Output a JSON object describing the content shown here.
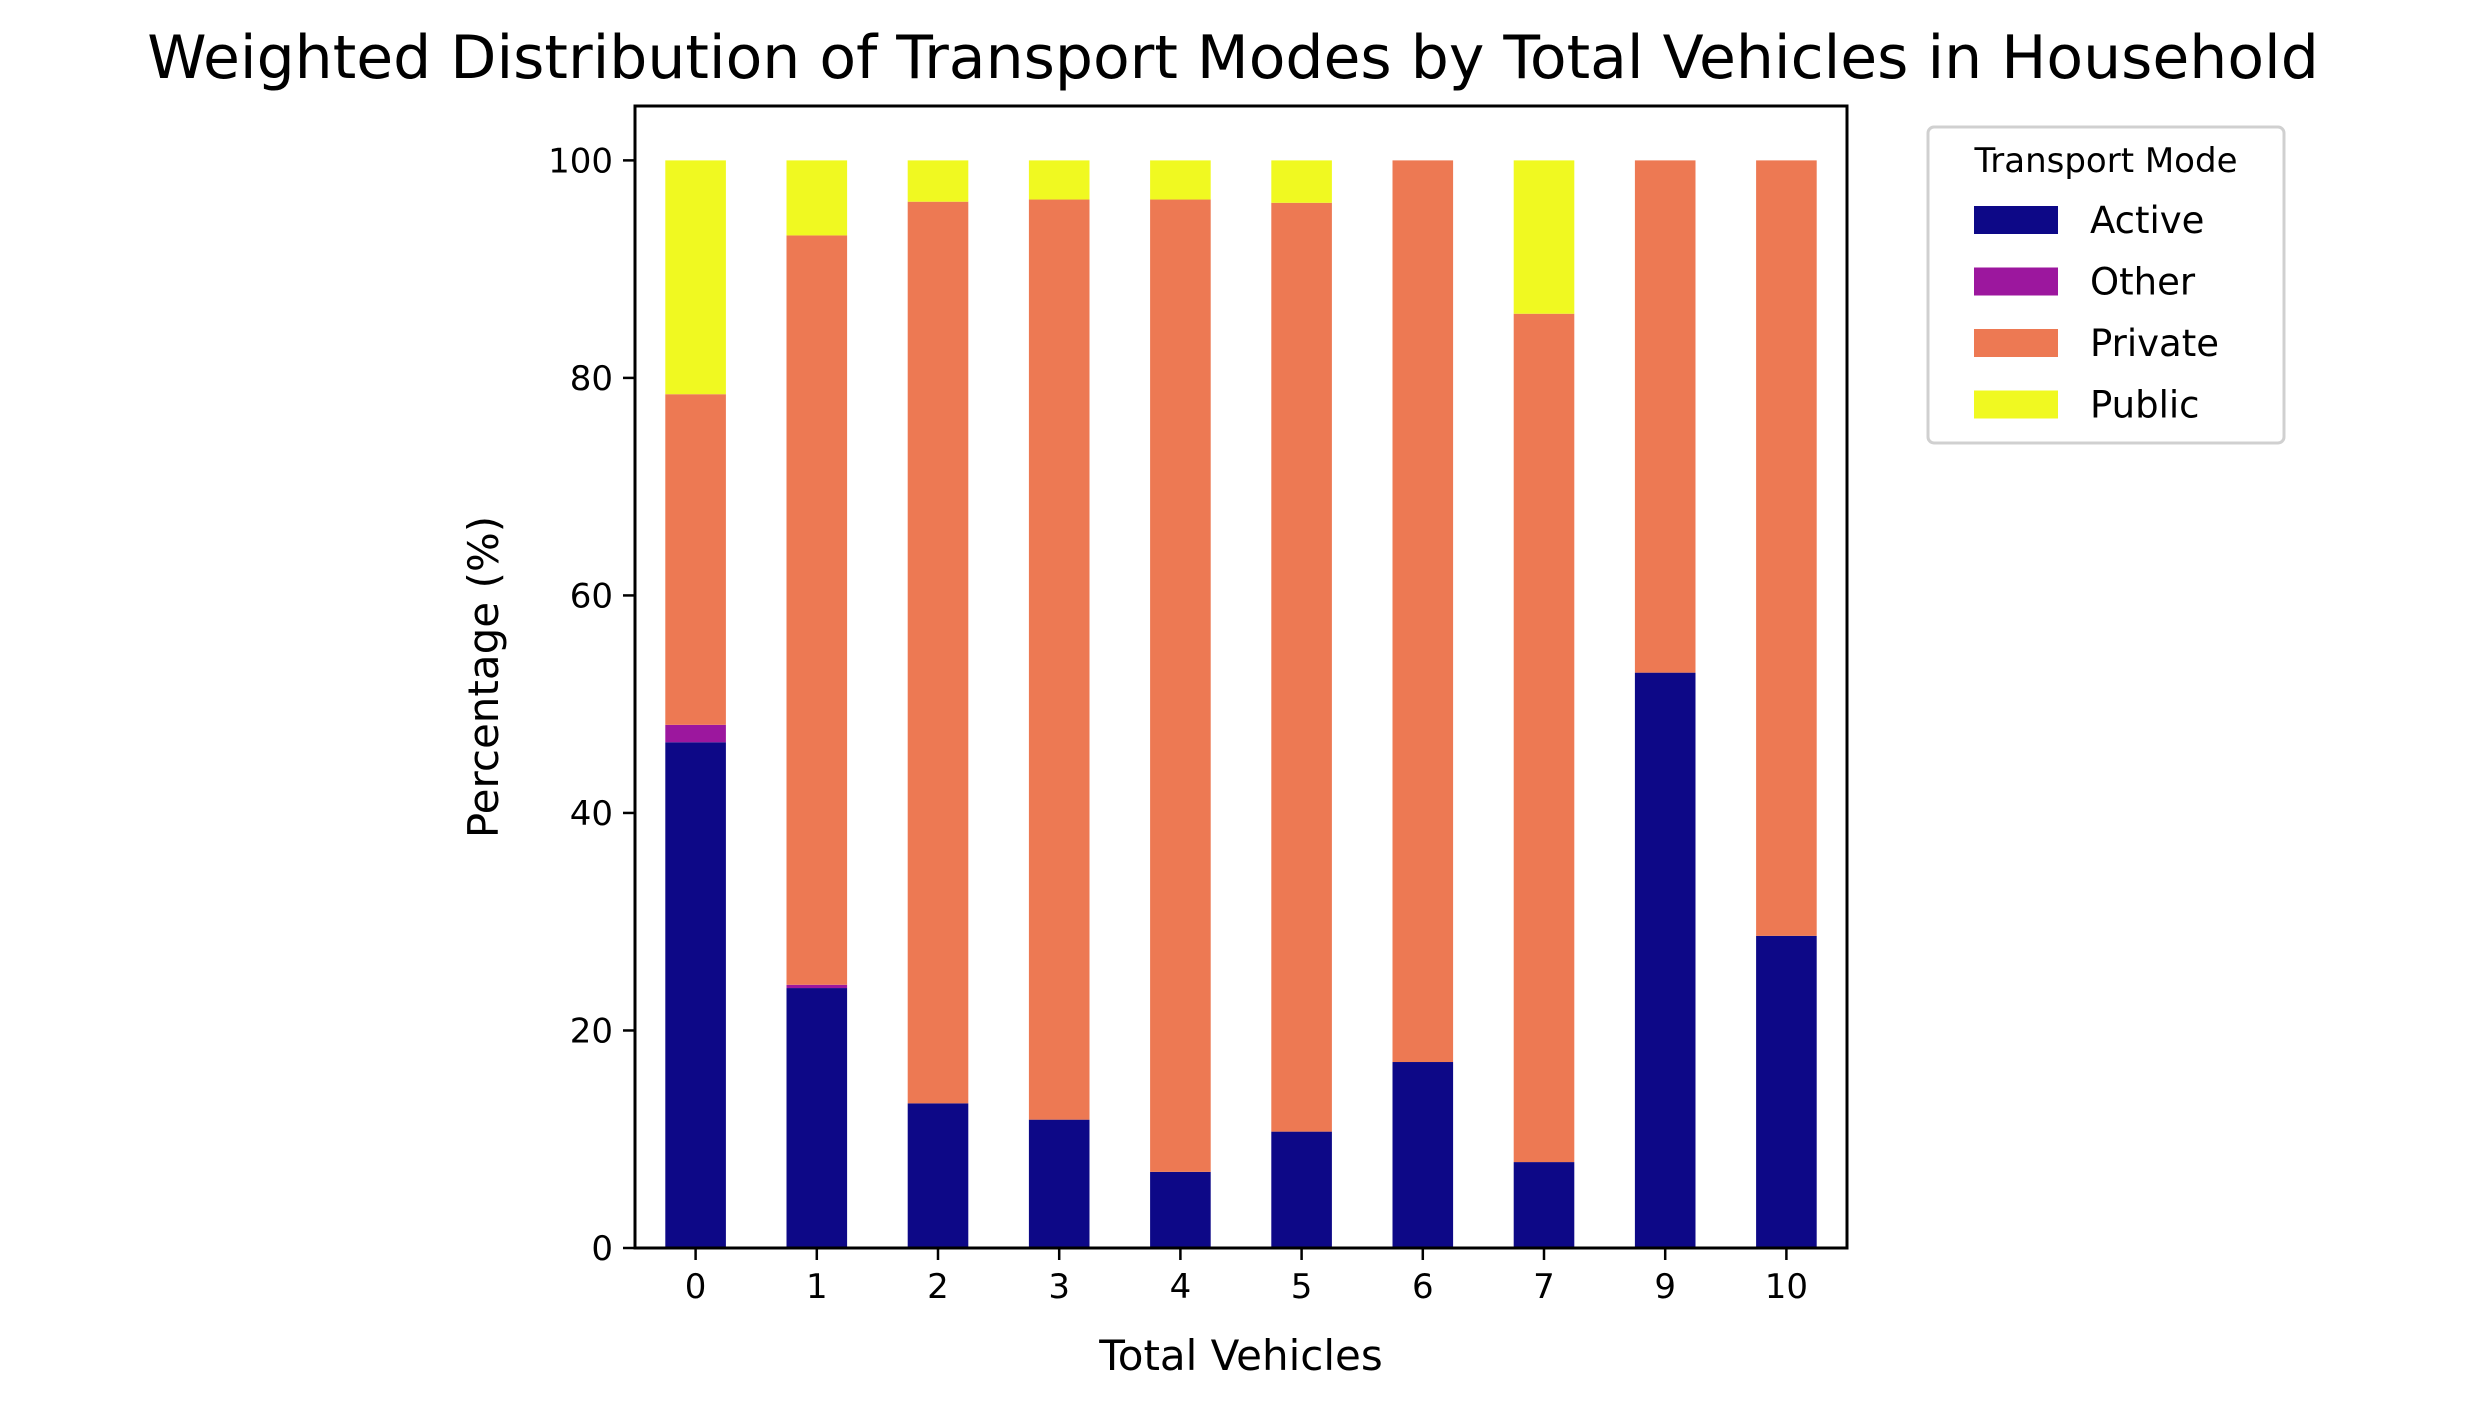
{
  "chart_data": {
    "type": "bar",
    "stacked": true,
    "title": "Weighted Distribution of Transport Modes by Total Vehicles in Household",
    "xlabel": "Total Vehicles",
    "ylabel": "Percentage (%)",
    "ylim": [
      0,
      105
    ],
    "yticks": [
      0,
      20,
      40,
      60,
      80,
      100
    ],
    "categories": [
      "0",
      "1",
      "2",
      "3",
      "4",
      "5",
      "6",
      "7",
      "9",
      "10"
    ],
    "legend_title": "Transport Mode",
    "legend_position": "outside-top-right",
    "series": [
      {
        "name": "Active",
        "color": "#0d0887",
        "values": [
          46.5,
          23.9,
          13.3,
          11.8,
          7.0,
          10.7,
          17.1,
          7.9,
          52.9,
          28.7
        ]
      },
      {
        "name": "Other",
        "color": "#9c179e",
        "values": [
          1.6,
          0.3,
          0.0,
          0.0,
          0.0,
          0.0,
          0.0,
          0.0,
          0.0,
          0.0
        ]
      },
      {
        "name": "Private",
        "color": "#ed7953",
        "values": [
          30.4,
          68.9,
          82.9,
          84.6,
          89.4,
          85.4,
          82.9,
          78.0,
          47.1,
          71.3
        ]
      },
      {
        "name": "Public",
        "color": "#f0f921",
        "values": [
          21.5,
          6.9,
          3.8,
          3.6,
          3.6,
          3.9,
          0.0,
          14.1,
          0.0,
          0.0
        ]
      }
    ]
  }
}
